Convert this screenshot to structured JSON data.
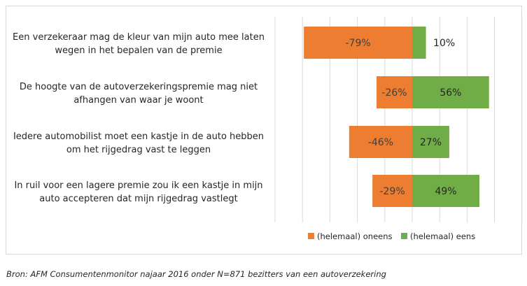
{
  "chart_data": {
    "type": "bar",
    "orientation": "horizontal",
    "stacked": "diverging",
    "categories": [
      [
        "Een verzekeraar mag de kleur van mijn auto mee laten",
        "wegen in het bepalen van de premie"
      ],
      [
        "De hoogte van de autoverzekeringspremie mag niet",
        "afhangen van waar je woont"
      ],
      [
        "Iedere automobilist moet een kastje in de auto hebben",
        "om het rijgedrag vast te leggen"
      ],
      [
        "In ruil voor een lagere premie zou ik een kastje in mijn",
        "auto accepteren dat mijn rijgedrag vastlegt"
      ]
    ],
    "series": [
      {
        "name": "(helemaal) oneens",
        "values": [
          -79,
          -26,
          -46,
          -29
        ],
        "labels": [
          "-79%",
          "-26%",
          "-46%",
          "-29%"
        ],
        "color": "#ed7d31",
        "label_color": "#404040"
      },
      {
        "name": "(helemaal) eens",
        "values": [
          10,
          56,
          27,
          49
        ],
        "labels": [
          "10%",
          "56%",
          "27%",
          "49%"
        ],
        "color": "#70ad47",
        "label_color": "#262626"
      }
    ],
    "xlim": [
      -100,
      80
    ],
    "grid": true,
    "legend": "bottom"
  },
  "source": "Bron: AFM Consumentenmonitor najaar 2016 onder N=871 bezitters van een autoverzekering"
}
